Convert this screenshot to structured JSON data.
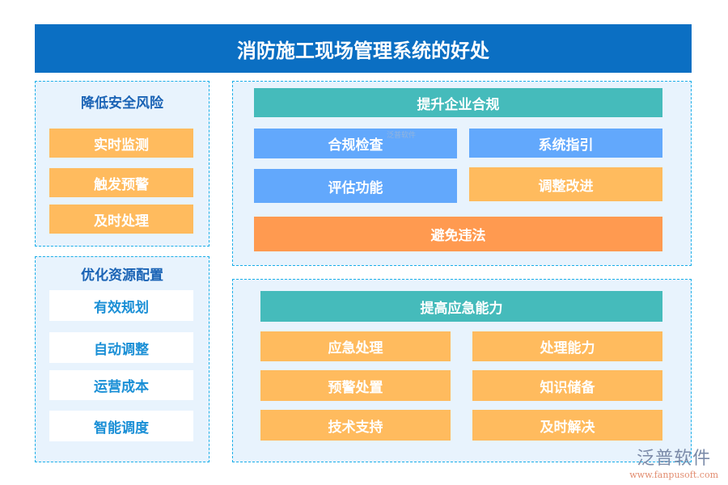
{
  "title": "消防施工现场管理系统的好处",
  "left": [
    {
      "title": "降低安全风险",
      "items": [
        "实时监测",
        "触发预警",
        "及时处理"
      ]
    },
    {
      "title": "优化资源配置",
      "items": [
        "有效规划",
        "自动调整",
        "运营成本",
        "智能调度"
      ]
    }
  ],
  "right": [
    {
      "title": "提升企业合规",
      "items": [
        "合规检查",
        "系统指引",
        "评估功能",
        "调整改进"
      ],
      "footer": "避免违法"
    },
    {
      "title": "提高应急能力",
      "items": [
        "应急处理",
        "处理能力",
        "预警处置",
        "知识储备",
        "技术支持",
        "及时解决"
      ]
    }
  ],
  "colors": {
    "header": "#0b6fc3",
    "orange": "#ffbb5e",
    "blue": "#62a8fc",
    "teal": "#45bbbb",
    "dark_orange": "#ff9a50"
  },
  "logo": {
    "name": "泛普软件",
    "url": "www.fanpusoft.com"
  }
}
